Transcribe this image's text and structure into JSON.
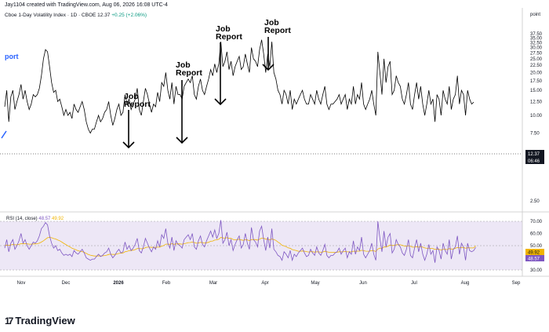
{
  "header": {
    "created_by": "Jay1104 created with TradingView.com, Aug 06, 2026 16:08 UTC-4"
  },
  "symbol": {
    "name": "Cboe 1-Day Volatility Index",
    "interval": "1D",
    "exchange": "CBOE",
    "price": "12.37",
    "change": "+0.25 (+2.06%)"
  },
  "side_label": "port",
  "footer": {
    "brand": "TradingView",
    "logo_text": "17"
  },
  "colors": {
    "price_line": "#000000",
    "rsi_line": "#7e57c2",
    "rsi_ma": "#f0b400",
    "rsi_band": "#ede7f6",
    "accent": "#2962ff"
  },
  "price_badges": {
    "value": "12.37",
    "countdown": "06:46"
  },
  "rsi_badges": {
    "ma": "49.92",
    "rsi": "48.57"
  },
  "rsi_legend": {
    "label": "RSI (14, close)",
    "rsi_value": "48.57",
    "ma_value": "49.92"
  },
  "chart_data": [
    {
      "type": "line",
      "title": "Cboe 1-Day Volatility Index",
      "y_scale": "log",
      "axis_unit_label": "point",
      "ylim": [
        1.8,
        48
      ],
      "yticks": [
        "2.50",
        "5.00",
        "7.50",
        "10.00",
        "12.50",
        "15.00",
        "17.50",
        "20.00",
        "22.50",
        "25.00",
        "27.50",
        "30.00",
        "32.50",
        "35.00",
        "37.50"
      ],
      "xticks": [
        "Nov",
        "Dec",
        "2026",
        "Feb",
        "Mar",
        "Apr",
        "May",
        "Jun",
        "Jul",
        "Aug",
        "Sep"
      ],
      "series": [
        {
          "values": [
            11.5,
            15,
            9,
            13.5,
            15,
            11,
            12.5,
            14,
            16.5,
            13,
            15,
            12.5,
            11,
            12,
            14,
            13.5,
            14,
            15.5,
            19,
            25,
            29,
            28,
            22,
            17,
            14.5,
            15,
            12.5,
            13,
            11.5,
            10,
            11,
            10,
            10.5,
            9.5,
            12,
            11,
            10.5,
            11.5,
            12.5,
            11,
            9,
            8,
            7.5,
            8,
            8,
            9,
            10,
            9,
            9.5,
            10.5,
            11,
            12.5,
            10,
            8.5,
            9.5,
            11,
            12,
            10,
            10.5,
            14,
            12,
            13,
            11,
            12,
            13,
            15.5,
            11,
            10,
            12.5,
            15.5,
            14,
            12,
            10.5,
            12,
            11.5,
            14.5,
            12.5,
            17,
            16,
            20,
            15,
            13,
            17,
            12,
            16,
            14,
            14,
            13,
            16,
            17,
            18,
            17,
            19,
            14,
            13,
            16,
            18,
            15,
            14,
            16,
            18,
            21,
            19,
            23,
            20,
            23,
            33,
            22,
            24,
            28,
            21,
            24,
            19,
            22,
            24,
            26,
            21,
            22,
            27,
            23,
            20,
            30,
            25,
            24,
            22,
            29,
            34,
            27,
            20,
            27,
            22,
            33,
            20,
            18,
            15,
            14,
            12,
            15,
            14,
            12,
            15,
            11,
            13,
            12,
            13,
            14,
            15,
            13,
            12,
            12,
            14,
            13,
            12,
            15,
            13,
            12,
            14,
            16,
            12,
            11,
            12,
            12,
            12.5,
            13,
            14,
            12,
            13,
            14,
            11,
            13,
            12,
            16,
            12,
            14,
            13,
            17,
            12,
            11,
            12,
            13,
            15,
            12,
            10,
            28,
            20,
            14,
            25,
            17,
            22,
            24,
            14,
            15,
            19,
            17,
            16,
            13,
            12,
            14,
            17,
            12,
            11,
            14,
            17,
            13,
            16,
            12,
            10,
            12,
            15,
            12,
            13,
            9,
            14,
            13,
            10,
            15,
            13,
            12,
            16,
            11,
            13,
            14,
            19,
            12,
            15,
            14,
            10,
            15,
            13,
            12,
            12.37
          ]
        }
      ],
      "annotations": [
        {
          "text": [
            "Job",
            "Report"
          ],
          "x_label": "Jan 2026"
        },
        {
          "text": [
            "Job",
            "Report"
          ],
          "x_label": "Feb 2026"
        },
        {
          "text": [
            "Job",
            "Report"
          ],
          "x_label": "Mar 2026"
        },
        {
          "text": [
            "Job",
            "Report"
          ],
          "x_label": "Apr 2026"
        }
      ]
    },
    {
      "type": "line",
      "title": "RSI (14, close)",
      "ylim": [
        25,
        75
      ],
      "yticks": [
        "30.00",
        "40.00",
        "50.00",
        "60.00",
        "70.00"
      ],
      "band": [
        30,
        70
      ],
      "series": [
        {
          "name": "RSI",
          "values": [
            48,
            55,
            45,
            52,
            55,
            47,
            50,
            54,
            60,
            52,
            55,
            50,
            47,
            50,
            53,
            52,
            54,
            58,
            64,
            66,
            69,
            67,
            58,
            52,
            48,
            50,
            46,
            47,
            44,
            42,
            43,
            42,
            43,
            41,
            46,
            44,
            43,
            45,
            47,
            44,
            40,
            39,
            38,
            39,
            39,
            41,
            43,
            41,
            42,
            44,
            45,
            48,
            43,
            40,
            42,
            45,
            47,
            44,
            45,
            53,
            47,
            50,
            46,
            48,
            51,
            56,
            46,
            44,
            49,
            56,
            52,
            48,
            45,
            49,
            47,
            54,
            49,
            59,
            56,
            64,
            52,
            48,
            57,
            46,
            54,
            51,
            50,
            48,
            55,
            57,
            59,
            55,
            60,
            49,
            47,
            54,
            58,
            51,
            49,
            54,
            58,
            62,
            57,
            63,
            56,
            60,
            71,
            52,
            55,
            61,
            50,
            55,
            46,
            51,
            55,
            58,
            48,
            51,
            60,
            52,
            47,
            65,
            55,
            53,
            49,
            62,
            66,
            55,
            46,
            57,
            48,
            64,
            47,
            45,
            42,
            41,
            38,
            45,
            43,
            40,
            46,
            38,
            43,
            41,
            44,
            46,
            48,
            44,
            41,
            42,
            47,
            44,
            42,
            49,
            44,
            42,
            46,
            51,
            42,
            40,
            42,
            42,
            44,
            45,
            48,
            43,
            46,
            48,
            40,
            45,
            43,
            54,
            43,
            49,
            46,
            57,
            43,
            40,
            43,
            46,
            52,
            43,
            38,
            70,
            56,
            45,
            62,
            49,
            57,
            60,
            44,
            47,
            55,
            51,
            49,
            44,
            42,
            47,
            55,
            42,
            40,
            48,
            55,
            45,
            52,
            43,
            38,
            43,
            51,
            43,
            46,
            36,
            49,
            46,
            39,
            52,
            46,
            43,
            55,
            39,
            47,
            49,
            58,
            43,
            52,
            49,
            38,
            52,
            46,
            45,
            46,
            48.57
          ]
        },
        {
          "name": "MA",
          "values": [
            50,
            50.5,
            50.3,
            50.6,
            51,
            50.7,
            50.8,
            51,
            51.6,
            51.5,
            51.7,
            51.5,
            51.2,
            51.2,
            51.4,
            51.4,
            51.6,
            52.1,
            53,
            54,
            55.3,
            56.5,
            56.8,
            56.5,
            55.9,
            55.5,
            54.7,
            54,
            53,
            51.9,
            50.9,
            49.9,
            49,
            47.9,
            47.3,
            46.5,
            45.8,
            45.4,
            45.1,
            44.5,
            43.6,
            42.8,
            42.2,
            41.8,
            41.5,
            41.5,
            41.6,
            41.5,
            41.6,
            41.9,
            42.2,
            42.8,
            43,
            42.8,
            42.8,
            43.1,
            43.6,
            43.8,
            44,
            45,
            45.3,
            45.9,
            46,
            46.3,
            46.8,
            47.7,
            47.6,
            47.4,
            47.6,
            48.4,
            48.8,
            48.8,
            48.6,
            48.7,
            48.5,
            48.8,
            48.8,
            49.6,
            50.1,
            51.2,
            51.3,
            51.1,
            51.6,
            51.1,
            51.4,
            51.5,
            51.4,
            51.2,
            51.6,
            52,
            52.5,
            52.6,
            53,
            52.6,
            52,
            52.2,
            52.7,
            52.5,
            52.2,
            52.4,
            52.8,
            53.6,
            53.8,
            54.6,
            54.8,
            55.3,
            56.8,
            56.3,
            56.2,
            56.6,
            56,
            56,
            55.1,
            54.8,
            54.9,
            55.3,
            54.7,
            54.4,
            54.9,
            54.7,
            54.1,
            55,
            55.1,
            55,
            54.6,
            55.3,
            56.2,
            56.2,
            55.3,
            55.4,
            54.8,
            55.5,
            55,
            54.3,
            53,
            51.9,
            50.3,
            49.9,
            49.2,
            48.2,
            47.9,
            46.8,
            46.4,
            46,
            45.4,
            45.4,
            45.6,
            45.5,
            45.1,
            44.8,
            45.1,
            45,
            44.7,
            44.9,
            44.9,
            44.6,
            44.8,
            45.4,
            45,
            44.6,
            44.6,
            44.5,
            44.4,
            44.6,
            45,
            44.9,
            44.9,
            45.2,
            44.9,
            44.9,
            44.9,
            45.5,
            45.3,
            45.5,
            45.5,
            46.2,
            45.9,
            45.5,
            45.4,
            45.5,
            46,
            45.8,
            45.2,
            47.2,
            48,
            47.8,
            48.9,
            48.9,
            49.6,
            50.5,
            50.1,
            50.2,
            50.7,
            50.8,
            50.7,
            50.3,
            49.7,
            49.5,
            50,
            49.5,
            48.8,
            48.8,
            49.2,
            48.8,
            49.3,
            48.8,
            48.1,
            47.8,
            48,
            47.7,
            47.7,
            46.9,
            47.1,
            47,
            46.4,
            47,
            47,
            46.7,
            47.6,
            47.2,
            47.2,
            47.8,
            48.5,
            48.2,
            48.5,
            48.5,
            47.9,
            48.3,
            48.2,
            48.1,
            48.1,
            49.92
          ]
        }
      ]
    }
  ]
}
